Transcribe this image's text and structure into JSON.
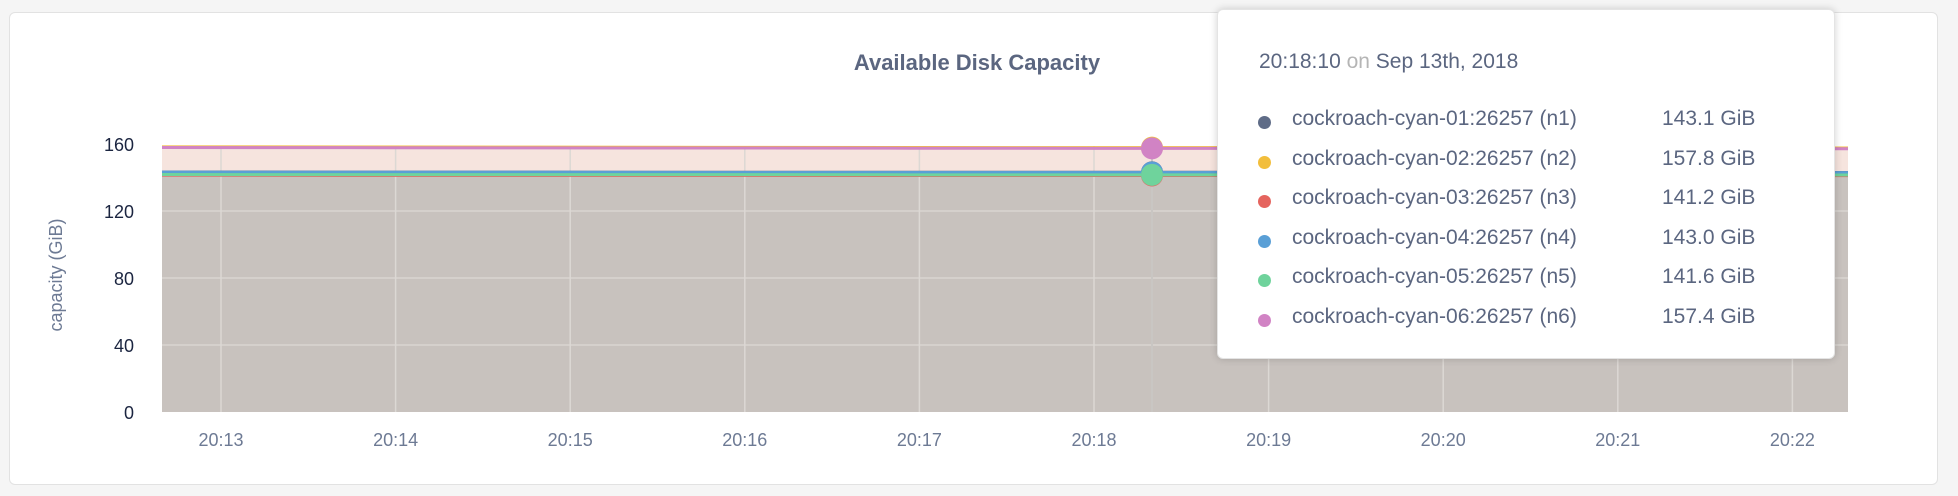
{
  "chart_data": {
    "type": "area",
    "title": "Available Disk Capacity",
    "ylabel": "capacity (GiB)",
    "xlabel": "",
    "ylim": [
      0,
      160
    ],
    "yticks": [
      "0",
      "40",
      "80",
      "120",
      "160"
    ],
    "xticks": [
      "20:13",
      "20:14",
      "20:15",
      "20:16",
      "20:17",
      "20:18",
      "20:19",
      "20:20",
      "20:21",
      "20:22"
    ],
    "grid": true,
    "series": [
      {
        "name": "cockroach-cyan-01:26257 (n1)",
        "color": "#5f6c87",
        "values": [
          143.3,
          143.2,
          143.2,
          143.1,
          143.1,
          143.1,
          143.1,
          143.0,
          143.0,
          143.0
        ]
      },
      {
        "name": "cockroach-cyan-02:26257 (n2)",
        "color": "#f2be3c",
        "values": [
          158.3,
          158.2,
          158.1,
          158.0,
          157.9,
          157.8,
          157.8,
          157.7,
          157.7,
          157.6
        ]
      },
      {
        "name": "cockroach-cyan-03:26257 (n3)",
        "color": "#e5645e",
        "values": [
          141.4,
          141.3,
          141.3,
          141.3,
          141.2,
          141.2,
          141.2,
          141.1,
          141.1,
          141.1
        ]
      },
      {
        "name": "cockroach-cyan-04:26257 (n4)",
        "color": "#5a9fd6",
        "values": [
          143.2,
          143.1,
          143.1,
          143.0,
          143.0,
          143.0,
          143.0,
          142.9,
          142.9,
          142.9
        ]
      },
      {
        "name": "cockroach-cyan-05:26257 (n5)",
        "color": "#6fd39c",
        "values": [
          141.8,
          141.7,
          141.7,
          141.7,
          141.6,
          141.6,
          141.6,
          141.5,
          141.5,
          141.5
        ]
      },
      {
        "name": "cockroach-cyan-06:26257 (n6)",
        "color": "#d183c4",
        "values": [
          157.9,
          157.8,
          157.7,
          157.6,
          157.5,
          157.4,
          157.4,
          157.3,
          157.3,
          157.2
        ]
      }
    ]
  },
  "tooltip": {
    "time": "20:18:10",
    "on": "on",
    "date": "Sep 13th, 2018",
    "rows": [
      {
        "name": "cockroach-cyan-01:26257 (n1)",
        "value": "143.1 GiB",
        "color": "#5f6c87"
      },
      {
        "name": "cockroach-cyan-02:26257 (n2)",
        "value": "157.8 GiB",
        "color": "#f2be3c"
      },
      {
        "name": "cockroach-cyan-03:26257 (n3)",
        "value": "141.2 GiB",
        "color": "#e5645e"
      },
      {
        "name": "cockroach-cyan-04:26257 (n4)",
        "value": "143.0 GiB",
        "color": "#5a9fd6"
      },
      {
        "name": "cockroach-cyan-05:26257 (n5)",
        "value": "141.6 GiB",
        "color": "#6fd39c"
      },
      {
        "name": "cockroach-cyan-06:26257 (n6)",
        "value": "157.4 GiB",
        "color": "#d183c4"
      }
    ]
  }
}
